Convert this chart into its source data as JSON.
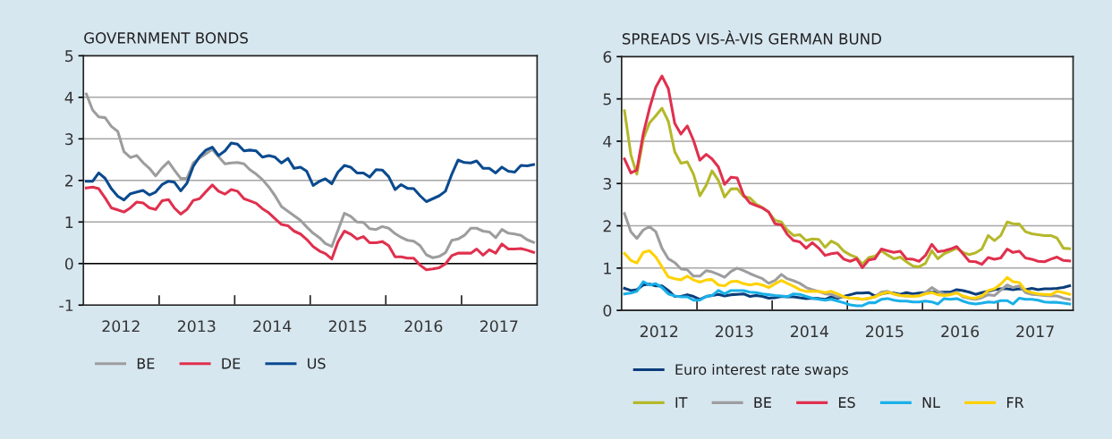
{
  "chart_data": [
    {
      "type": "line",
      "title": "GOVERNMENT BONDS",
      "x": [
        "2012-01-15",
        "2012-02-15",
        "2012-03-15",
        "2012-04-15",
        "2012-05-15",
        "2012-06-15",
        "2012-07-15",
        "2012-08-15",
        "2012-09-15",
        "2012-10-15",
        "2012-11-15",
        "2012-12-15",
        "2013-01-15",
        "2013-02-15",
        "2013-03-15",
        "2013-04-15",
        "2013-05-15",
        "2013-06-15",
        "2013-07-15",
        "2013-08-15",
        "2013-09-15",
        "2013-10-15",
        "2013-11-15",
        "2013-12-15",
        "2014-01-15",
        "2014-02-15",
        "2014-03-15",
        "2014-04-15",
        "2014-05-15",
        "2014-06-15",
        "2014-07-15",
        "2014-08-15",
        "2014-09-15",
        "2014-10-15",
        "2014-11-15",
        "2014-12-15",
        "2015-01-15",
        "2015-02-15",
        "2015-03-15",
        "2015-04-15",
        "2015-05-15",
        "2015-06-15",
        "2015-07-15",
        "2015-08-15",
        "2015-09-15",
        "2015-10-15",
        "2015-11-15",
        "2015-12-15",
        "2016-01-15",
        "2016-02-15",
        "2016-03-15",
        "2016-04-15",
        "2016-05-15",
        "2016-06-15",
        "2016-07-15",
        "2016-08-15",
        "2016-09-15",
        "2016-10-15",
        "2016-11-15",
        "2016-12-15",
        "2017-01-15",
        "2017-02-15",
        "2017-03-15",
        "2017-04-15",
        "2017-05-15",
        "2017-06-15",
        "2017-07-15",
        "2017-08-15",
        "2017-09-15",
        "2017-10-15",
        "2017-11-15",
        "2017-12-15"
      ],
      "xlim": [
        "2012-01-01",
        "2018-01-01"
      ],
      "xticks": [
        {
          "value": "2013-01-01",
          "label": null
        },
        {
          "value": "2014-01-01",
          "label": null
        },
        {
          "value": "2015-01-01",
          "label": null
        },
        {
          "value": "2016-01-01",
          "label": null
        },
        {
          "value": "2017-01-01",
          "label": null
        },
        {
          "value": "2012-07-01",
          "label": "2012"
        },
        {
          "value": "2013-07-01",
          "label": "2013"
        },
        {
          "value": "2014-07-01",
          "label": "2014"
        },
        {
          "value": "2015-07-01",
          "label": "2015"
        },
        {
          "value": "2016-07-01",
          "label": "2016"
        },
        {
          "value": "2017-07-01",
          "label": "2017"
        }
      ],
      "ylim": [
        -1,
        5
      ],
      "yticks": [
        {
          "value": -1,
          "label": "-1"
        },
        0,
        1,
        2,
        3,
        4,
        5
      ],
      "grid": "y",
      "legend": "bottom",
      "ref_lines": [
        {
          "axis": "y",
          "value": 0,
          "color": "#000000"
        }
      ],
      "series": [
        {
          "name": "BE",
          "color": "#9d9d9f",
          "values": [
            4.08,
            3.69,
            3.53,
            3.51,
            3.3,
            3.18,
            2.69,
            2.55,
            2.6,
            2.43,
            2.29,
            2.11,
            2.3,
            2.45,
            2.25,
            2.05,
            2.05,
            2.42,
            2.54,
            2.64,
            2.75,
            2.57,
            2.4,
            2.42,
            2.43,
            2.4,
            2.26,
            2.15,
            2.02,
            1.84,
            1.63,
            1.37,
            1.26,
            1.15,
            1.04,
            0.88,
            0.73,
            0.62,
            0.48,
            0.41,
            0.8,
            1.21,
            1.14,
            1.0,
            0.99,
            0.84,
            0.82,
            0.89,
            0.85,
            0.72,
            0.63,
            0.56,
            0.54,
            0.43,
            0.21,
            0.14,
            0.17,
            0.26,
            0.56,
            0.59,
            0.68,
            0.85,
            0.85,
            0.78,
            0.76,
            0.62,
            0.82,
            0.73,
            0.71,
            0.68,
            0.57,
            0.51
          ]
        },
        {
          "name": "DE",
          "color": "#e0304e",
          "values": [
            1.82,
            1.84,
            1.8,
            1.58,
            1.34,
            1.29,
            1.24,
            1.34,
            1.48,
            1.46,
            1.34,
            1.3,
            1.51,
            1.54,
            1.34,
            1.19,
            1.3,
            1.52,
            1.56,
            1.73,
            1.89,
            1.74,
            1.67,
            1.78,
            1.74,
            1.56,
            1.51,
            1.45,
            1.32,
            1.22,
            1.08,
            0.94,
            0.91,
            0.78,
            0.71,
            0.58,
            0.41,
            0.3,
            0.24,
            0.11,
            0.52,
            0.78,
            0.71,
            0.59,
            0.65,
            0.5,
            0.5,
            0.53,
            0.43,
            0.16,
            0.16,
            0.13,
            0.13,
            -0.04,
            -0.15,
            -0.13,
            -0.1,
            -0.01,
            0.19,
            0.25,
            0.25,
            0.25,
            0.35,
            0.2,
            0.33,
            0.25,
            0.47,
            0.35,
            0.35,
            0.36,
            0.32,
            0.27
          ]
        },
        {
          "name": "US",
          "color": "#0a4a8f",
          "values": [
            1.98,
            1.98,
            2.18,
            2.05,
            1.8,
            1.62,
            1.53,
            1.68,
            1.72,
            1.76,
            1.65,
            1.72,
            1.9,
            1.98,
            1.96,
            1.75,
            1.93,
            2.34,
            2.57,
            2.73,
            2.8,
            2.6,
            2.71,
            2.9,
            2.87,
            2.71,
            2.73,
            2.71,
            2.56,
            2.6,
            2.56,
            2.42,
            2.53,
            2.29,
            2.32,
            2.22,
            1.88,
            1.98,
            2.04,
            1.92,
            2.2,
            2.36,
            2.32,
            2.18,
            2.18,
            2.08,
            2.26,
            2.25,
            2.09,
            1.78,
            1.9,
            1.81,
            1.8,
            1.63,
            1.49,
            1.56,
            1.63,
            1.74,
            2.15,
            2.49,
            2.43,
            2.42,
            2.47,
            2.29,
            2.29,
            2.18,
            2.32,
            2.22,
            2.2,
            2.36,
            2.35,
            2.38
          ]
        }
      ]
    },
    {
      "type": "line",
      "title": "SPREADS VIS-À-VIS GERMAN BUND",
      "x": [
        "2012-01-15",
        "2012-02-15",
        "2012-03-15",
        "2012-04-15",
        "2012-05-15",
        "2012-06-15",
        "2012-07-15",
        "2012-08-15",
        "2012-09-15",
        "2012-10-15",
        "2012-11-15",
        "2012-12-15",
        "2013-01-15",
        "2013-02-15",
        "2013-03-15",
        "2013-04-15",
        "2013-05-15",
        "2013-06-15",
        "2013-07-15",
        "2013-08-15",
        "2013-09-15",
        "2013-10-15",
        "2013-11-15",
        "2013-12-15",
        "2014-01-15",
        "2014-02-15",
        "2014-03-15",
        "2014-04-15",
        "2014-05-15",
        "2014-06-15",
        "2014-07-15",
        "2014-08-15",
        "2014-09-15",
        "2014-10-15",
        "2014-11-15",
        "2014-12-15",
        "2015-01-15",
        "2015-02-15",
        "2015-03-15",
        "2015-04-15",
        "2015-05-15",
        "2015-06-15",
        "2015-07-15",
        "2015-08-15",
        "2015-09-15",
        "2015-10-15",
        "2015-11-15",
        "2015-12-15",
        "2016-01-15",
        "2016-02-15",
        "2016-03-15",
        "2016-04-15",
        "2016-05-15",
        "2016-06-15",
        "2016-07-15",
        "2016-08-15",
        "2016-09-15",
        "2016-10-15",
        "2016-11-15",
        "2016-12-15",
        "2017-01-15",
        "2017-02-15",
        "2017-03-15",
        "2017-04-15",
        "2017-05-15",
        "2017-06-15",
        "2017-07-15",
        "2017-08-15",
        "2017-09-15",
        "2017-10-15",
        "2017-11-15",
        "2017-12-15"
      ],
      "xlim": [
        "2012-01-01",
        "2018-01-01"
      ],
      "xticks": [
        {
          "value": "2013-01-01",
          "label": null
        },
        {
          "value": "2014-01-01",
          "label": null
        },
        {
          "value": "2015-01-01",
          "label": null
        },
        {
          "value": "2016-01-01",
          "label": null
        },
        {
          "value": "2017-01-01",
          "label": null
        },
        {
          "value": "2012-07-01",
          "label": "2012"
        },
        {
          "value": "2013-07-01",
          "label": "2013"
        },
        {
          "value": "2014-07-01",
          "label": "2014"
        },
        {
          "value": "2015-07-01",
          "label": "2015"
        },
        {
          "value": "2016-07-01",
          "label": "2016"
        },
        {
          "value": "2017-07-01",
          "label": "2017"
        }
      ],
      "ylim": [
        0,
        6
      ],
      "yticks": [
        0,
        1,
        2,
        3,
        4,
        5,
        6
      ],
      "grid": "y",
      "legend": "bottom",
      "series": [
        {
          "name": "Euro interest rate swaps",
          "color": "#0a3d7a",
          "values": [
            0.52,
            0.47,
            0.49,
            0.6,
            0.62,
            0.58,
            0.58,
            0.47,
            0.33,
            0.33,
            0.37,
            0.33,
            0.26,
            0.33,
            0.35,
            0.38,
            0.34,
            0.37,
            0.38,
            0.39,
            0.33,
            0.35,
            0.33,
            0.29,
            0.3,
            0.33,
            0.32,
            0.32,
            0.3,
            0.28,
            0.29,
            0.28,
            0.26,
            0.32,
            0.29,
            0.33,
            0.37,
            0.41,
            0.41,
            0.42,
            0.34,
            0.39,
            0.42,
            0.41,
            0.38,
            0.42,
            0.39,
            0.41,
            0.42,
            0.43,
            0.43,
            0.43,
            0.43,
            0.49,
            0.47,
            0.43,
            0.38,
            0.42,
            0.45,
            0.49,
            0.51,
            0.51,
            0.49,
            0.51,
            0.49,
            0.52,
            0.49,
            0.51,
            0.51,
            0.52,
            0.54,
            0.58
          ]
        },
        {
          "name": "IT",
          "color": "#b5b82a",
          "values": [
            4.72,
            3.68,
            3.22,
            4.05,
            4.43,
            4.6,
            4.78,
            4.47,
            3.75,
            3.48,
            3.51,
            3.22,
            2.71,
            2.96,
            3.3,
            3.07,
            2.68,
            2.87,
            2.88,
            2.69,
            2.66,
            2.51,
            2.43,
            2.32,
            2.13,
            2.09,
            1.9,
            1.77,
            1.79,
            1.65,
            1.69,
            1.68,
            1.49,
            1.64,
            1.56,
            1.4,
            1.31,
            1.25,
            1.09,
            1.25,
            1.28,
            1.41,
            1.31,
            1.22,
            1.26,
            1.15,
            1.05,
            1.03,
            1.11,
            1.41,
            1.22,
            1.34,
            1.4,
            1.47,
            1.37,
            1.32,
            1.36,
            1.45,
            1.77,
            1.65,
            1.77,
            2.09,
            2.05,
            2.04,
            1.86,
            1.81,
            1.79,
            1.77,
            1.77,
            1.71,
            1.47,
            1.46
          ]
        },
        {
          "name": "BE",
          "color": "#9d9d9f",
          "values": [
            2.29,
            1.86,
            1.7,
            1.9,
            1.98,
            1.86,
            1.47,
            1.22,
            1.13,
            0.98,
            0.96,
            0.81,
            0.81,
            0.94,
            0.91,
            0.85,
            0.78,
            0.92,
            1.0,
            0.94,
            0.87,
            0.81,
            0.75,
            0.64,
            0.71,
            0.85,
            0.75,
            0.7,
            0.64,
            0.54,
            0.49,
            0.45,
            0.39,
            0.38,
            0.32,
            0.32,
            0.29,
            0.28,
            0.26,
            0.28,
            0.32,
            0.43,
            0.45,
            0.39,
            0.35,
            0.34,
            0.34,
            0.35,
            0.42,
            0.54,
            0.45,
            0.39,
            0.39,
            0.43,
            0.32,
            0.28,
            0.26,
            0.3,
            0.37,
            0.35,
            0.48,
            0.6,
            0.54,
            0.58,
            0.42,
            0.38,
            0.37,
            0.35,
            0.34,
            0.34,
            0.29,
            0.26
          ]
        },
        {
          "name": "ES",
          "color": "#e0304e",
          "values": [
            3.58,
            3.25,
            3.32,
            4.17,
            4.77,
            5.28,
            5.54,
            5.24,
            4.42,
            4.17,
            4.36,
            4.02,
            3.55,
            3.69,
            3.58,
            3.39,
            2.98,
            3.15,
            3.13,
            2.73,
            2.54,
            2.48,
            2.42,
            2.33,
            2.05,
            2.02,
            1.8,
            1.65,
            1.62,
            1.47,
            1.6,
            1.47,
            1.3,
            1.34,
            1.36,
            1.21,
            1.16,
            1.22,
            1.01,
            1.19,
            1.22,
            1.45,
            1.41,
            1.37,
            1.4,
            1.22,
            1.21,
            1.16,
            1.3,
            1.56,
            1.39,
            1.41,
            1.45,
            1.51,
            1.34,
            1.16,
            1.15,
            1.09,
            1.25,
            1.21,
            1.24,
            1.45,
            1.37,
            1.4,
            1.24,
            1.21,
            1.16,
            1.15,
            1.21,
            1.26,
            1.18,
            1.17
          ]
        },
        {
          "name": "NL",
          "color": "#1ab0e8",
          "values": [
            0.39,
            0.41,
            0.45,
            0.68,
            0.6,
            0.63,
            0.54,
            0.39,
            0.34,
            0.32,
            0.32,
            0.24,
            0.24,
            0.33,
            0.35,
            0.47,
            0.39,
            0.47,
            0.47,
            0.47,
            0.43,
            0.42,
            0.39,
            0.37,
            0.35,
            0.34,
            0.32,
            0.39,
            0.38,
            0.33,
            0.29,
            0.26,
            0.24,
            0.26,
            0.22,
            0.18,
            0.13,
            0.11,
            0.11,
            0.18,
            0.18,
            0.26,
            0.28,
            0.24,
            0.22,
            0.22,
            0.2,
            0.2,
            0.22,
            0.2,
            0.15,
            0.28,
            0.26,
            0.28,
            0.22,
            0.17,
            0.15,
            0.17,
            0.2,
            0.19,
            0.23,
            0.23,
            0.15,
            0.29,
            0.26,
            0.26,
            0.24,
            0.2,
            0.19,
            0.19,
            0.17,
            0.15
          ]
        },
        {
          "name": "FR",
          "color": "#ffd100",
          "values": [
            1.35,
            1.18,
            1.12,
            1.37,
            1.41,
            1.26,
            1.03,
            0.79,
            0.75,
            0.72,
            0.81,
            0.72,
            0.67,
            0.72,
            0.73,
            0.6,
            0.58,
            0.68,
            0.69,
            0.63,
            0.6,
            0.63,
            0.6,
            0.54,
            0.63,
            0.71,
            0.64,
            0.57,
            0.49,
            0.45,
            0.45,
            0.45,
            0.42,
            0.45,
            0.39,
            0.32,
            0.29,
            0.29,
            0.26,
            0.29,
            0.32,
            0.39,
            0.43,
            0.39,
            0.35,
            0.34,
            0.33,
            0.34,
            0.39,
            0.42,
            0.37,
            0.35,
            0.37,
            0.41,
            0.34,
            0.3,
            0.29,
            0.34,
            0.47,
            0.51,
            0.62,
            0.78,
            0.68,
            0.66,
            0.47,
            0.42,
            0.39,
            0.38,
            0.37,
            0.45,
            0.42,
            0.38
          ]
        }
      ]
    }
  ]
}
